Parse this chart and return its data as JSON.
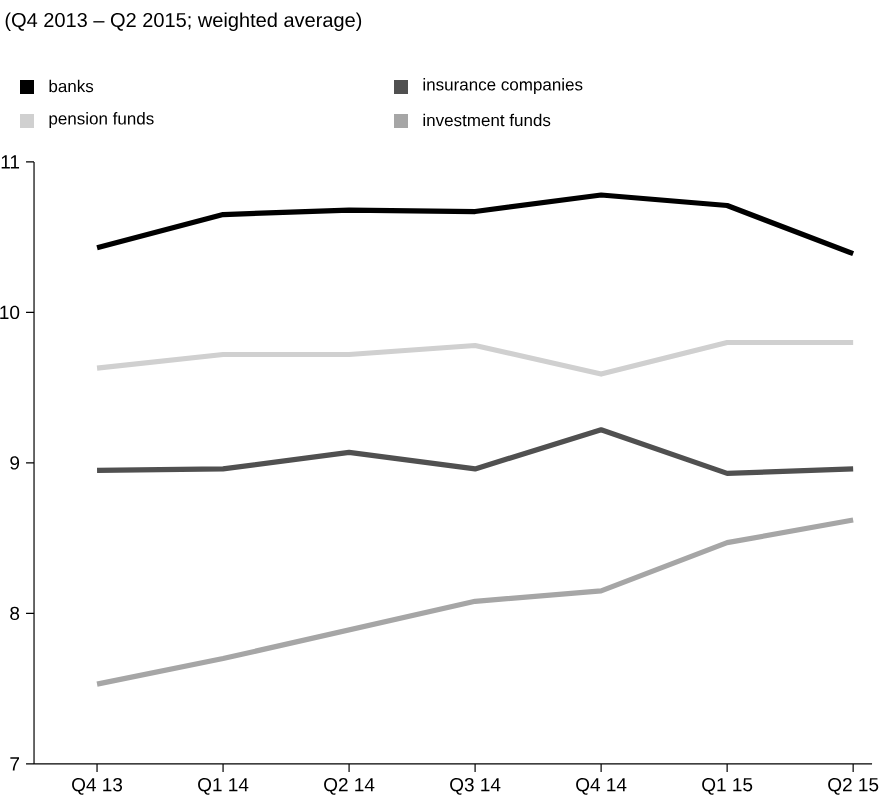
{
  "chart_data": {
    "type": "line",
    "title": "(Q4 2013 – Q2 2015; weighted average)",
    "categories": [
      "Q4 13",
      "Q1 14",
      "Q2 14",
      "Q3 14",
      "Q4 14",
      "Q1 15",
      "Q2 15"
    ],
    "series": [
      {
        "name": "banks",
        "color": "#000000",
        "values": [
          10.43,
          10.65,
          10.68,
          10.67,
          10.78,
          10.71,
          10.39
        ]
      },
      {
        "name": "pension funds",
        "color": "#d0d0d0",
        "values": [
          9.63,
          9.72,
          9.72,
          9.78,
          9.59,
          9.8,
          9.8
        ]
      },
      {
        "name": "insurance companies",
        "color": "#505050",
        "values": [
          8.95,
          8.96,
          9.07,
          8.96,
          9.22,
          8.93,
          8.96
        ]
      },
      {
        "name": "investment funds",
        "color": "#a6a6a6",
        "values": [
          7.53,
          7.7,
          7.89,
          8.08,
          8.15,
          8.47,
          8.62
        ]
      }
    ],
    "ylim": [
      7,
      11
    ],
    "yticks": [
      7,
      8,
      9,
      10,
      11
    ],
    "grid": false,
    "legend": "top",
    "marker": "none",
    "line_style": "solid"
  }
}
